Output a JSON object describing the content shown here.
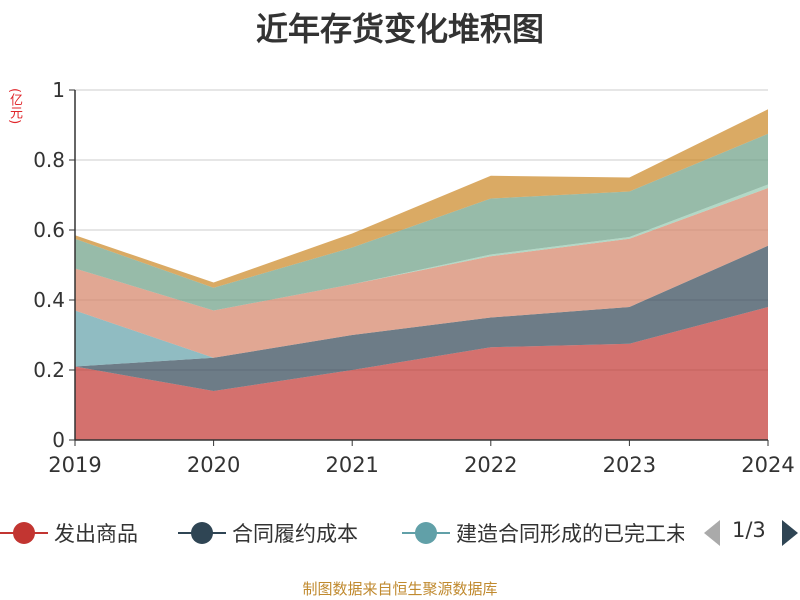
{
  "chart_data": {
    "type": "area",
    "stacked": true,
    "title": "近年存货变化堆积图",
    "unit_label": "(亿元)",
    "source": "制图数据来自恒生聚源数据库",
    "x": [
      "2019",
      "2020",
      "2021",
      "2022",
      "2023",
      "2024"
    ],
    "ylim": [
      0,
      1
    ],
    "yticks": [
      "0",
      "0.2",
      "0.4",
      "0.6",
      "0.8",
      "1"
    ],
    "grid": true,
    "legend_position": "bottom",
    "series": [
      {
        "name": "发出商品",
        "color": "#c23531",
        "values": [
          0.21,
          0.14,
          0.2,
          0.265,
          0.275,
          0.38
        ]
      },
      {
        "name": "合同履约成本",
        "color": "#2f4554",
        "values": [
          0.0,
          0.095,
          0.1,
          0.085,
          0.105,
          0.175
        ]
      },
      {
        "name": "建造合同形成的已完工未结算资产",
        "color": "#61a0a8",
        "values": [
          0.16,
          0.0,
          0.0,
          0.0,
          0.0,
          0.0
        ]
      },
      {
        "name": "",
        "color": "#d48265",
        "values": [
          0.12,
          0.135,
          0.145,
          0.175,
          0.195,
          0.165
        ]
      },
      {
        "name": "",
        "color": "#91c7ae",
        "values": [
          0.0,
          0.0,
          0.0,
          0.005,
          0.005,
          0.01
        ]
      },
      {
        "name": "",
        "color": "#6b9e84",
        "values": [
          0.085,
          0.065,
          0.105,
          0.16,
          0.13,
          0.145
        ]
      },
      {
        "name": "",
        "color": "#ca8622",
        "values": [
          0.01,
          0.015,
          0.04,
          0.065,
          0.04,
          0.07
        ]
      }
    ],
    "legend_entries": [
      "发出商品",
      "合同履约成本",
      "建造合同形成的已完工未结算资产"
    ],
    "legend_page": "1/3"
  }
}
